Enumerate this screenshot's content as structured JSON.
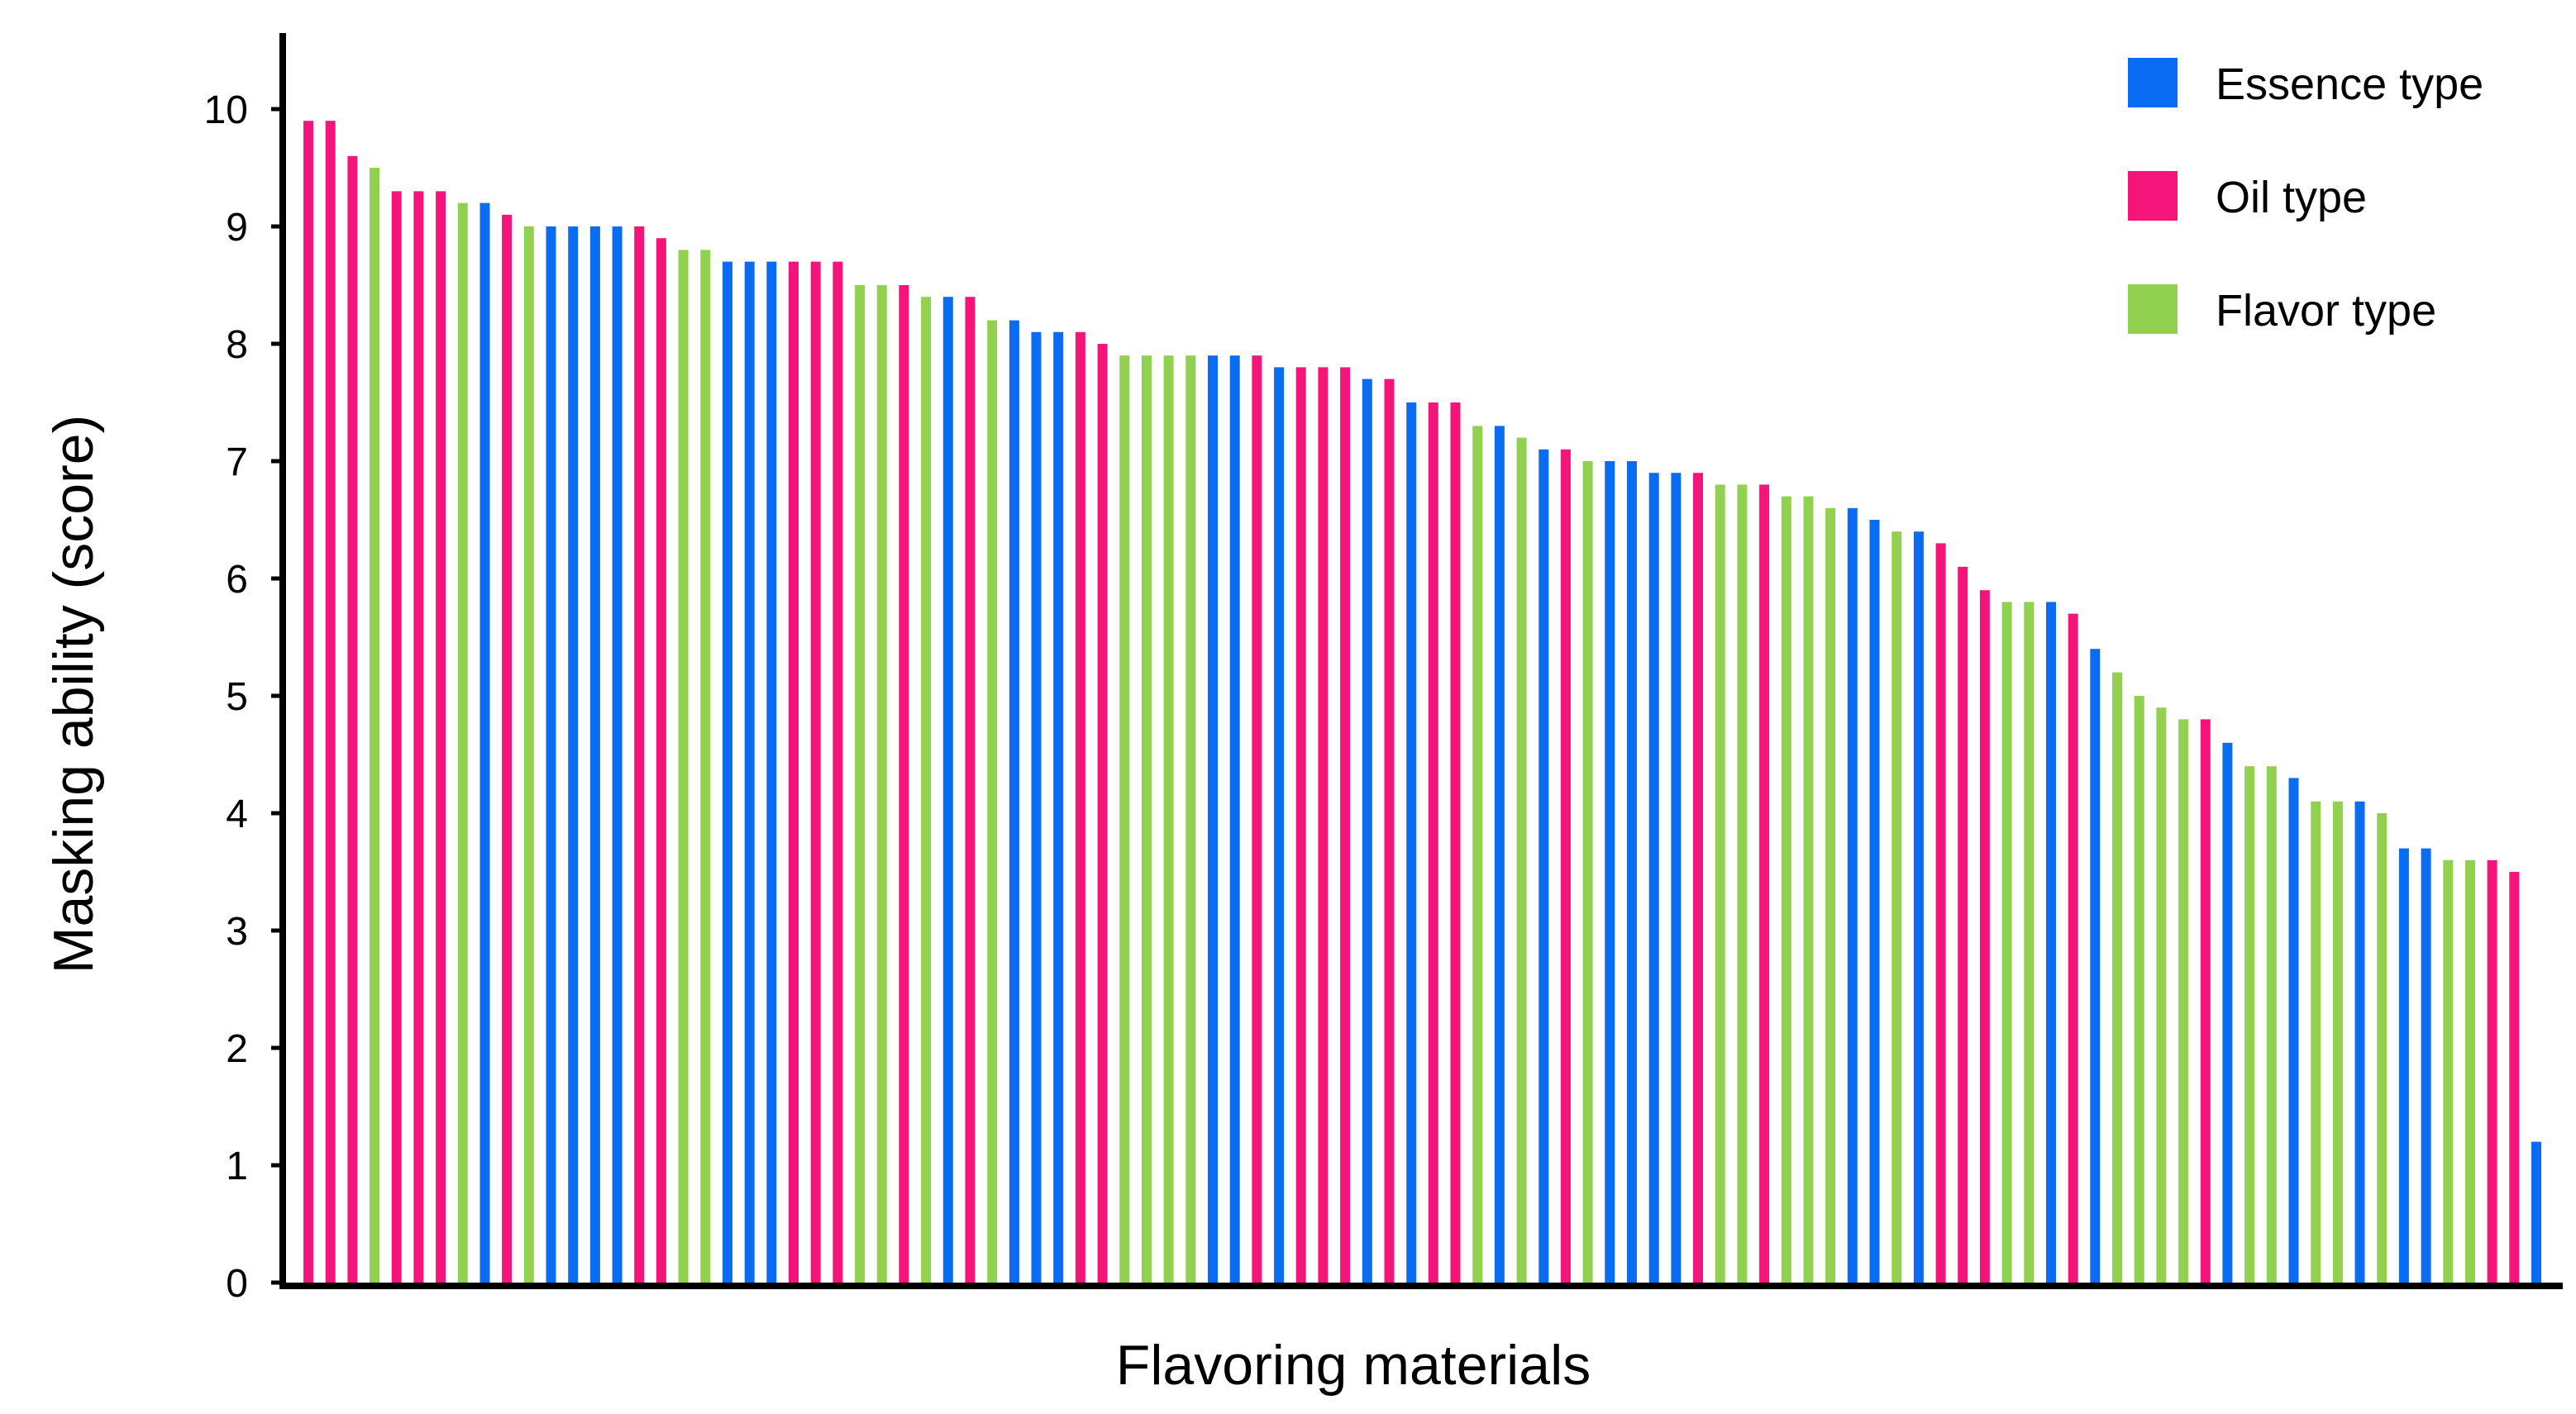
{
  "chart_data": {
    "type": "bar",
    "xlabel": "Flavoring materials",
    "ylabel": "Masking ability (score)",
    "ylim": [
      0,
      10.5
    ],
    "yticks": [
      0,
      1,
      2,
      3,
      4,
      5,
      6,
      7,
      8,
      9,
      10
    ],
    "grid": false,
    "legend_position": "top-right",
    "series": [
      {
        "key": "E",
        "name": "Essence type",
        "color": "#0A6CF2"
      },
      {
        "key": "O",
        "name": "Oil type",
        "color": "#F5157A"
      },
      {
        "key": "F",
        "name": "Flavor type",
        "color": "#92D050"
      }
    ],
    "bars": [
      {
        "s": "O",
        "v": 9.9
      },
      {
        "s": "O",
        "v": 9.9
      },
      {
        "s": "O",
        "v": 9.6
      },
      {
        "s": "F",
        "v": 9.5
      },
      {
        "s": "O",
        "v": 9.3
      },
      {
        "s": "O",
        "v": 9.3
      },
      {
        "s": "O",
        "v": 9.3
      },
      {
        "s": "F",
        "v": 9.2
      },
      {
        "s": "E",
        "v": 9.2
      },
      {
        "s": "O",
        "v": 9.1
      },
      {
        "s": "F",
        "v": 9.0
      },
      {
        "s": "E",
        "v": 9.0
      },
      {
        "s": "E",
        "v": 9.0
      },
      {
        "s": "E",
        "v": 9.0
      },
      {
        "s": "E",
        "v": 9.0
      },
      {
        "s": "O",
        "v": 9.0
      },
      {
        "s": "O",
        "v": 8.9
      },
      {
        "s": "F",
        "v": 8.8
      },
      {
        "s": "F",
        "v": 8.8
      },
      {
        "s": "E",
        "v": 8.7
      },
      {
        "s": "E",
        "v": 8.7
      },
      {
        "s": "E",
        "v": 8.7
      },
      {
        "s": "O",
        "v": 8.7
      },
      {
        "s": "O",
        "v": 8.7
      },
      {
        "s": "O",
        "v": 8.7
      },
      {
        "s": "F",
        "v": 8.5
      },
      {
        "s": "F",
        "v": 8.5
      },
      {
        "s": "O",
        "v": 8.5
      },
      {
        "s": "F",
        "v": 8.4
      },
      {
        "s": "E",
        "v": 8.4
      },
      {
        "s": "O",
        "v": 8.4
      },
      {
        "s": "F",
        "v": 8.2
      },
      {
        "s": "E",
        "v": 8.2
      },
      {
        "s": "E",
        "v": 8.1
      },
      {
        "s": "E",
        "v": 8.1
      },
      {
        "s": "O",
        "v": 8.1
      },
      {
        "s": "O",
        "v": 8.0
      },
      {
        "s": "F",
        "v": 7.9
      },
      {
        "s": "F",
        "v": 7.9
      },
      {
        "s": "F",
        "v": 7.9
      },
      {
        "s": "F",
        "v": 7.9
      },
      {
        "s": "E",
        "v": 7.9
      },
      {
        "s": "E",
        "v": 7.9
      },
      {
        "s": "O",
        "v": 7.9
      },
      {
        "s": "E",
        "v": 7.8
      },
      {
        "s": "O",
        "v": 7.8
      },
      {
        "s": "O",
        "v": 7.8
      },
      {
        "s": "O",
        "v": 7.8
      },
      {
        "s": "E",
        "v": 7.7
      },
      {
        "s": "O",
        "v": 7.7
      },
      {
        "s": "E",
        "v": 7.5
      },
      {
        "s": "O",
        "v": 7.5
      },
      {
        "s": "O",
        "v": 7.5
      },
      {
        "s": "F",
        "v": 7.3
      },
      {
        "s": "E",
        "v": 7.3
      },
      {
        "s": "F",
        "v": 7.2
      },
      {
        "s": "E",
        "v": 7.1
      },
      {
        "s": "O",
        "v": 7.1
      },
      {
        "s": "F",
        "v": 7.0
      },
      {
        "s": "E",
        "v": 7.0
      },
      {
        "s": "E",
        "v": 7.0
      },
      {
        "s": "E",
        "v": 6.9
      },
      {
        "s": "E",
        "v": 6.9
      },
      {
        "s": "O",
        "v": 6.9
      },
      {
        "s": "F",
        "v": 6.8
      },
      {
        "s": "F",
        "v": 6.8
      },
      {
        "s": "O",
        "v": 6.8
      },
      {
        "s": "F",
        "v": 6.7
      },
      {
        "s": "F",
        "v": 6.7
      },
      {
        "s": "F",
        "v": 6.6
      },
      {
        "s": "E",
        "v": 6.6
      },
      {
        "s": "E",
        "v": 6.5
      },
      {
        "s": "F",
        "v": 6.4
      },
      {
        "s": "E",
        "v": 6.4
      },
      {
        "s": "O",
        "v": 6.3
      },
      {
        "s": "O",
        "v": 6.1
      },
      {
        "s": "O",
        "v": 5.9
      },
      {
        "s": "F",
        "v": 5.8
      },
      {
        "s": "F",
        "v": 5.8
      },
      {
        "s": "E",
        "v": 5.8
      },
      {
        "s": "O",
        "v": 5.7
      },
      {
        "s": "E",
        "v": 5.4
      },
      {
        "s": "F",
        "v": 5.2
      },
      {
        "s": "F",
        "v": 5.0
      },
      {
        "s": "F",
        "v": 4.9
      },
      {
        "s": "F",
        "v": 4.8
      },
      {
        "s": "O",
        "v": 4.8
      },
      {
        "s": "E",
        "v": 4.6
      },
      {
        "s": "F",
        "v": 4.4
      },
      {
        "s": "F",
        "v": 4.4
      },
      {
        "s": "E",
        "v": 4.3
      },
      {
        "s": "F",
        "v": 4.1
      },
      {
        "s": "F",
        "v": 4.1
      },
      {
        "s": "E",
        "v": 4.1
      },
      {
        "s": "F",
        "v": 4.0
      },
      {
        "s": "E",
        "v": 3.7
      },
      {
        "s": "E",
        "v": 3.7
      },
      {
        "s": "F",
        "v": 3.6
      },
      {
        "s": "F",
        "v": 3.6
      },
      {
        "s": "O",
        "v": 3.6
      },
      {
        "s": "O",
        "v": 3.5
      },
      {
        "s": "E",
        "v": 1.2
      }
    ]
  }
}
